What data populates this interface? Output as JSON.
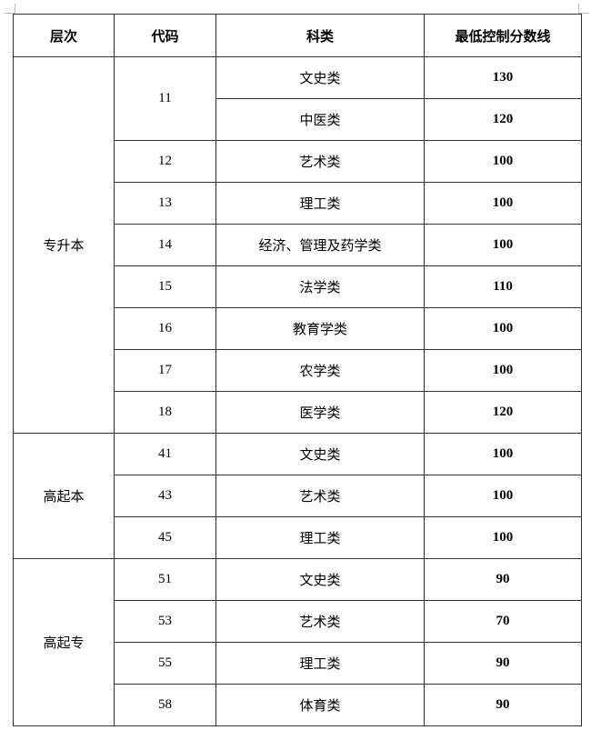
{
  "headers": [
    "层次",
    "代码",
    "科类",
    "最低控制分数线"
  ],
  "groups": [
    {
      "level": "专升本",
      "rows": [
        {
          "code": "11",
          "category": "文史类",
          "score": "130"
        },
        {
          "code": "11",
          "category": "中医类",
          "score": "120"
        },
        {
          "code": "12",
          "category": "艺术类",
          "score": "100"
        },
        {
          "code": "13",
          "category": "理工类",
          "score": "100"
        },
        {
          "code": "14",
          "category": "经济、管理及药学类",
          "score": "100"
        },
        {
          "code": "15",
          "category": "法学类",
          "score": "110"
        },
        {
          "code": "16",
          "category": "教育学类",
          "score": "100"
        },
        {
          "code": "17",
          "category": "农学类",
          "score": "100"
        },
        {
          "code": "18",
          "category": "医学类",
          "score": "120"
        }
      ]
    },
    {
      "level": "高起本",
      "rows": [
        {
          "code": "41",
          "category": "文史类",
          "score": "100"
        },
        {
          "code": "43",
          "category": "艺术类",
          "score": "100"
        },
        {
          "code": "45",
          "category": "理工类",
          "score": "100"
        }
      ]
    },
    {
      "level": "高起专",
      "rows": [
        {
          "code": "51",
          "category": "文史类",
          "score": "90"
        },
        {
          "code": "53",
          "category": "艺术类",
          "score": "70"
        },
        {
          "code": "55",
          "category": "理工类",
          "score": "90"
        },
        {
          "code": "58",
          "category": "体育类",
          "score": "90"
        }
      ]
    }
  ]
}
